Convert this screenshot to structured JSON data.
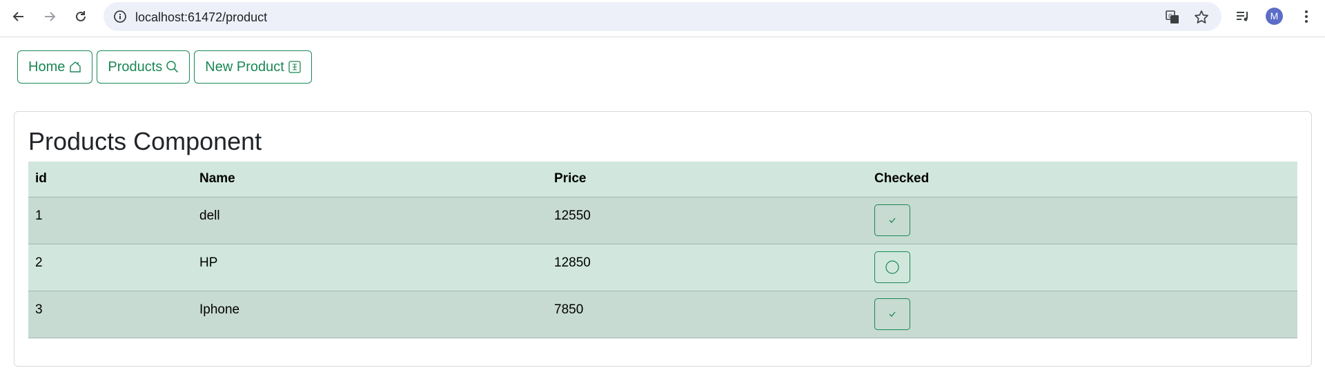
{
  "browser": {
    "url": "localhost:61472/product",
    "profile_initial": "M"
  },
  "nav": {
    "home_label": "Home",
    "products_label": "Products",
    "new_product_label": "New Product"
  },
  "page": {
    "title": "Products Component"
  },
  "table": {
    "headers": [
      "id",
      "Name",
      "Price",
      "Checked"
    ],
    "rows": [
      {
        "id": "1",
        "name": "dell",
        "price": "12550",
        "checked": true
      },
      {
        "id": "2",
        "name": "HP",
        "price": "12850",
        "checked": false
      },
      {
        "id": "3",
        "name": "Iphone",
        "price": "7850",
        "checked": true
      }
    ]
  },
  "colors": {
    "accent": "#198754",
    "header_bg": "#d1e7dd",
    "row_alt_bg": "#c7dbd2"
  }
}
